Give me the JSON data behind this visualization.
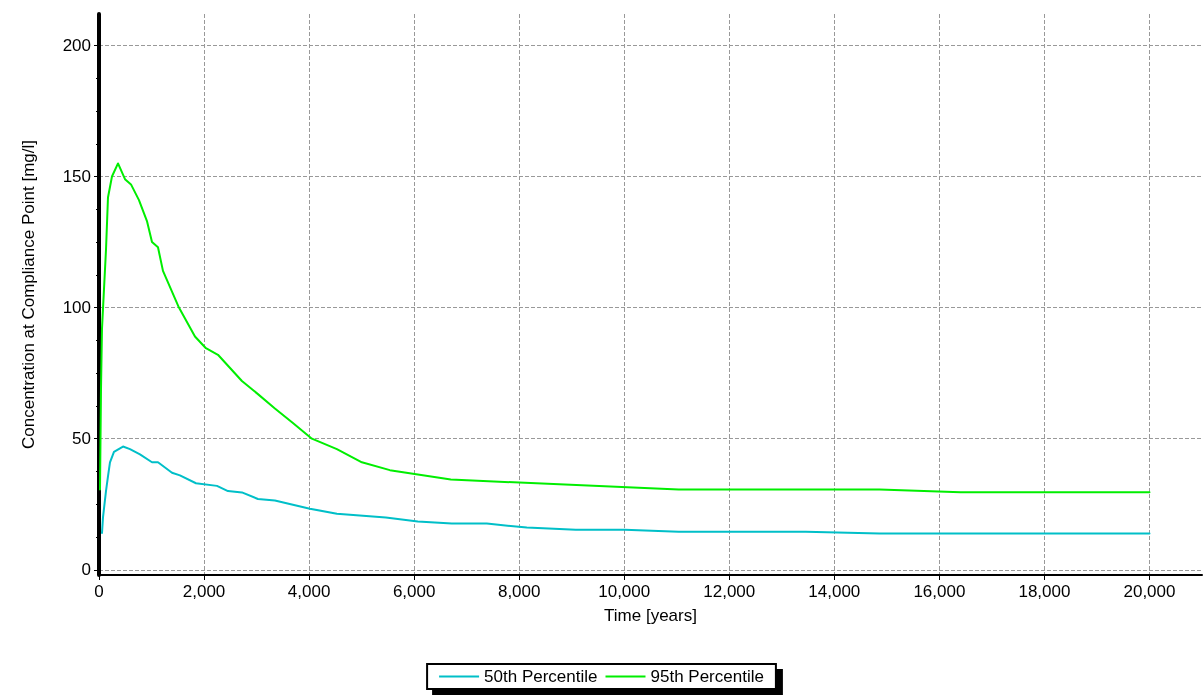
{
  "chart_data": {
    "type": "line",
    "xlabel": "Time [years]",
    "ylabel": "Concentration at Compliance Point [mg/l]",
    "xlim": [
      0,
      21000
    ],
    "xticks": [
      {
        "value": 0,
        "label": "0"
      },
      {
        "value": 2000,
        "label": "2,000"
      },
      {
        "value": 4000,
        "label": "4,000"
      },
      {
        "value": 6000,
        "label": "6,000"
      },
      {
        "value": 8000,
        "label": "8,000"
      },
      {
        "value": 10000,
        "label": "10,000"
      },
      {
        "value": 12000,
        "label": "12,000"
      },
      {
        "value": 14000,
        "label": "14,000"
      },
      {
        "value": 16000,
        "label": "16,000"
      },
      {
        "value": 18000,
        "label": "18,000"
      },
      {
        "value": 20000,
        "label": "20,000"
      }
    ],
    "ylim": [
      -2,
      212
    ],
    "yticks": [
      0,
      50,
      100,
      150,
      200
    ],
    "grid": true,
    "legend": "bottom",
    "line_style": "solid",
    "marker": "none",
    "series": [
      {
        "name": "50th Percentile",
        "color": "#00bfc8",
        "x": [
          57,
          76,
          133,
          171,
          209,
          285,
          457,
          590,
          780,
          1009,
          1123,
          1390,
          1541,
          1846,
          2246,
          2455,
          2721,
          3026,
          3349,
          4015,
          4529,
          5461,
          6070,
          6717,
          7383,
          8145,
          9077,
          10010,
          11037,
          13454,
          14862,
          20000
        ],
        "values": [
          14,
          20,
          30,
          35.6,
          41,
          45,
          47,
          46,
          44,
          41,
          41,
          37,
          36,
          33,
          32,
          30,
          29.5,
          27,
          26.4,
          23.3,
          21.4,
          19.9,
          18.4,
          17.6,
          17.6,
          16.1,
          15.3,
          15.3,
          14.5,
          14.5,
          13.8,
          13.8
        ]
      },
      {
        "name": "95th Percentile",
        "color": "#00ee00",
        "x": [
          19,
          38,
          57,
          133,
          171,
          247,
          362,
          495,
          609,
          761,
          913,
          1009,
          1123,
          1218,
          1522,
          1827,
          2036,
          2265,
          2721,
          3026,
          3349,
          3692,
          4053,
          4529,
          5005,
          5538,
          6698,
          11037,
          14862,
          16403,
          20000
        ],
        "values": [
          30.6,
          69,
          92,
          122,
          142,
          150,
          155,
          149,
          147,
          141,
          133,
          125,
          123,
          114,
          100,
          89,
          84.5,
          82,
          72,
          67,
          61.5,
          56,
          50,
          46,
          41,
          38,
          34.4,
          30.6,
          30.6,
          29.6,
          29.6
        ]
      }
    ]
  }
}
